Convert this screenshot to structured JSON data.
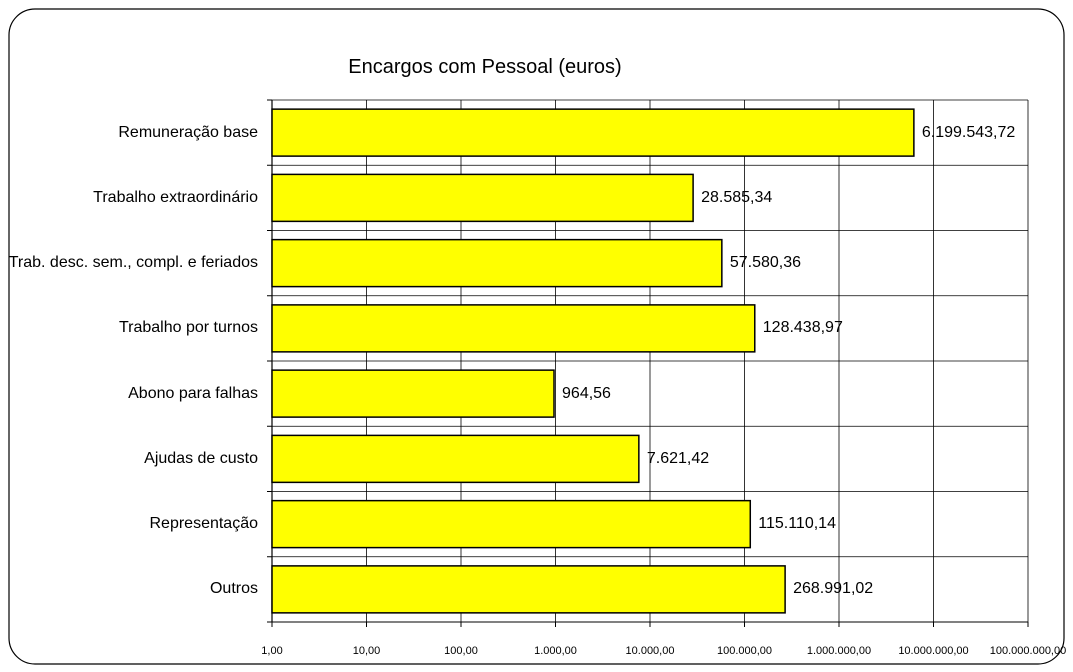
{
  "chart_data": {
    "type": "bar",
    "orientation": "horizontal",
    "title": "Encargos com Pessoal (euros)",
    "categories": [
      "Remuneração base",
      "Trabalho extraordinário",
      "Trab. desc. sem., compl. e feriados",
      "Trabalho por turnos",
      "Abono para falhas",
      "Ajudas de custo",
      "Representação",
      "Outros"
    ],
    "values": [
      6199543.72,
      28585.34,
      57580.36,
      128438.97,
      964.56,
      7621.42,
      115110.14,
      268991.02
    ],
    "value_labels": [
      "6.199.543,72",
      "28.585,34",
      "57.580,36",
      "128.438,97",
      "964,56",
      "7.621,42",
      "115.110,14",
      "268.991,02"
    ],
    "color": "#ffff00",
    "xscale": "log",
    "xlim": [
      1,
      100000000
    ],
    "xticks": [
      {
        "value": 1,
        "label": "1,00"
      },
      {
        "value": 10,
        "label": "10,00"
      },
      {
        "value": 100,
        "label": "100,00"
      },
      {
        "value": 1000,
        "label": "1.000,00"
      },
      {
        "value": 10000,
        "label": "10.000,00"
      },
      {
        "value": 100000,
        "label": "100.000,00"
      },
      {
        "value": 1000000,
        "label": "1.000.000,00"
      },
      {
        "value": 10000000,
        "label": "10.000.000,00"
      },
      {
        "value": 100000000,
        "label": "100.000.000,00"
      }
    ],
    "grid": true
  }
}
